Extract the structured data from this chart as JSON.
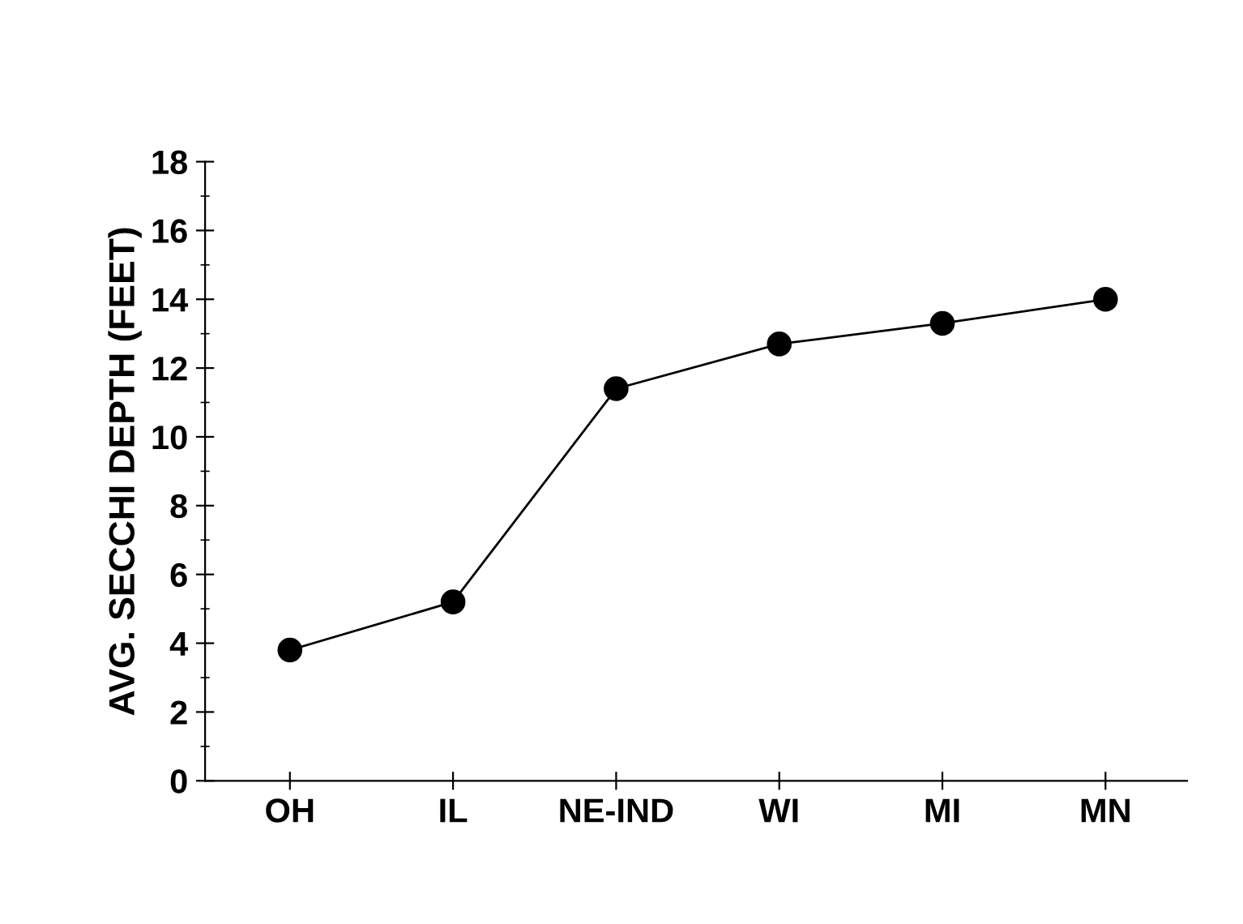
{
  "chart_data": {
    "type": "line",
    "ylabel": "AVG. SECCHI DEPTH (FEET)",
    "categories": [
      "OH",
      "IL",
      "NE-IND",
      "WI",
      "MI",
      "MN"
    ],
    "series": [
      {
        "color": "#000000",
        "values": [
          3.8,
          5.2,
          11.4,
          12.7,
          13.3,
          14.0
        ]
      }
    ],
    "ylim": [
      0,
      18
    ],
    "yticks": [
      0,
      2,
      4,
      6,
      8,
      10,
      12,
      14,
      16,
      18
    ],
    "marker": "circle",
    "line_style": "solid",
    "grid": false,
    "legend": false
  }
}
